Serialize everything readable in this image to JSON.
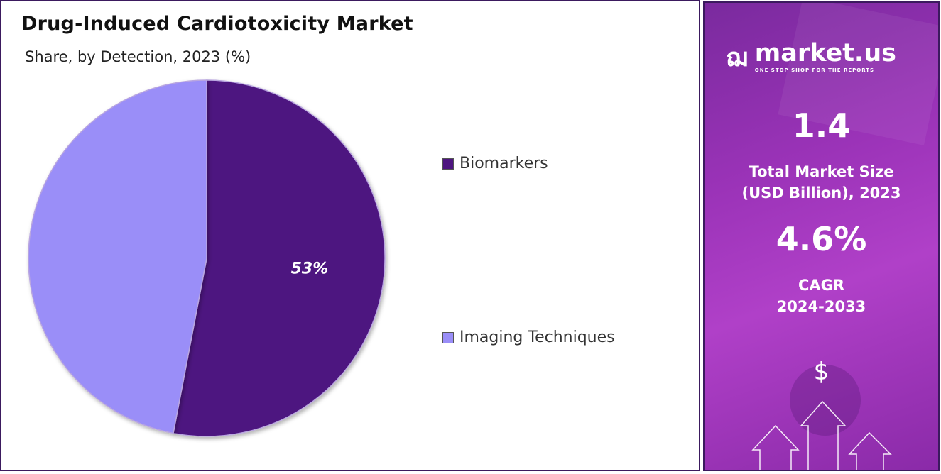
{
  "chart_data": {
    "type": "pie",
    "title": "Drug-Induced Cardiotoxicity Market",
    "subtitle": "Share, by Detection, 2023 (%)",
    "categories": [
      "Biomarkers",
      "Imaging Techniques"
    ],
    "values": [
      53,
      47
    ],
    "data_labels": [
      "53%",
      ""
    ],
    "colors": [
      "#4e1580",
      "#9a8ef8"
    ],
    "legend_placement": "right"
  },
  "sidebar": {
    "brand": "market.us",
    "tagline": "ONE STOP SHOP FOR THE REPORTS",
    "market_size": "1.4",
    "market_size_label_1": "Total Market Size",
    "market_size_label_2": "(USD Billion), 2023",
    "cagr": "4.6%",
    "cagr_label_1": "CAGR",
    "cagr_label_2": "2024-2033",
    "dollar_symbol": "$"
  }
}
